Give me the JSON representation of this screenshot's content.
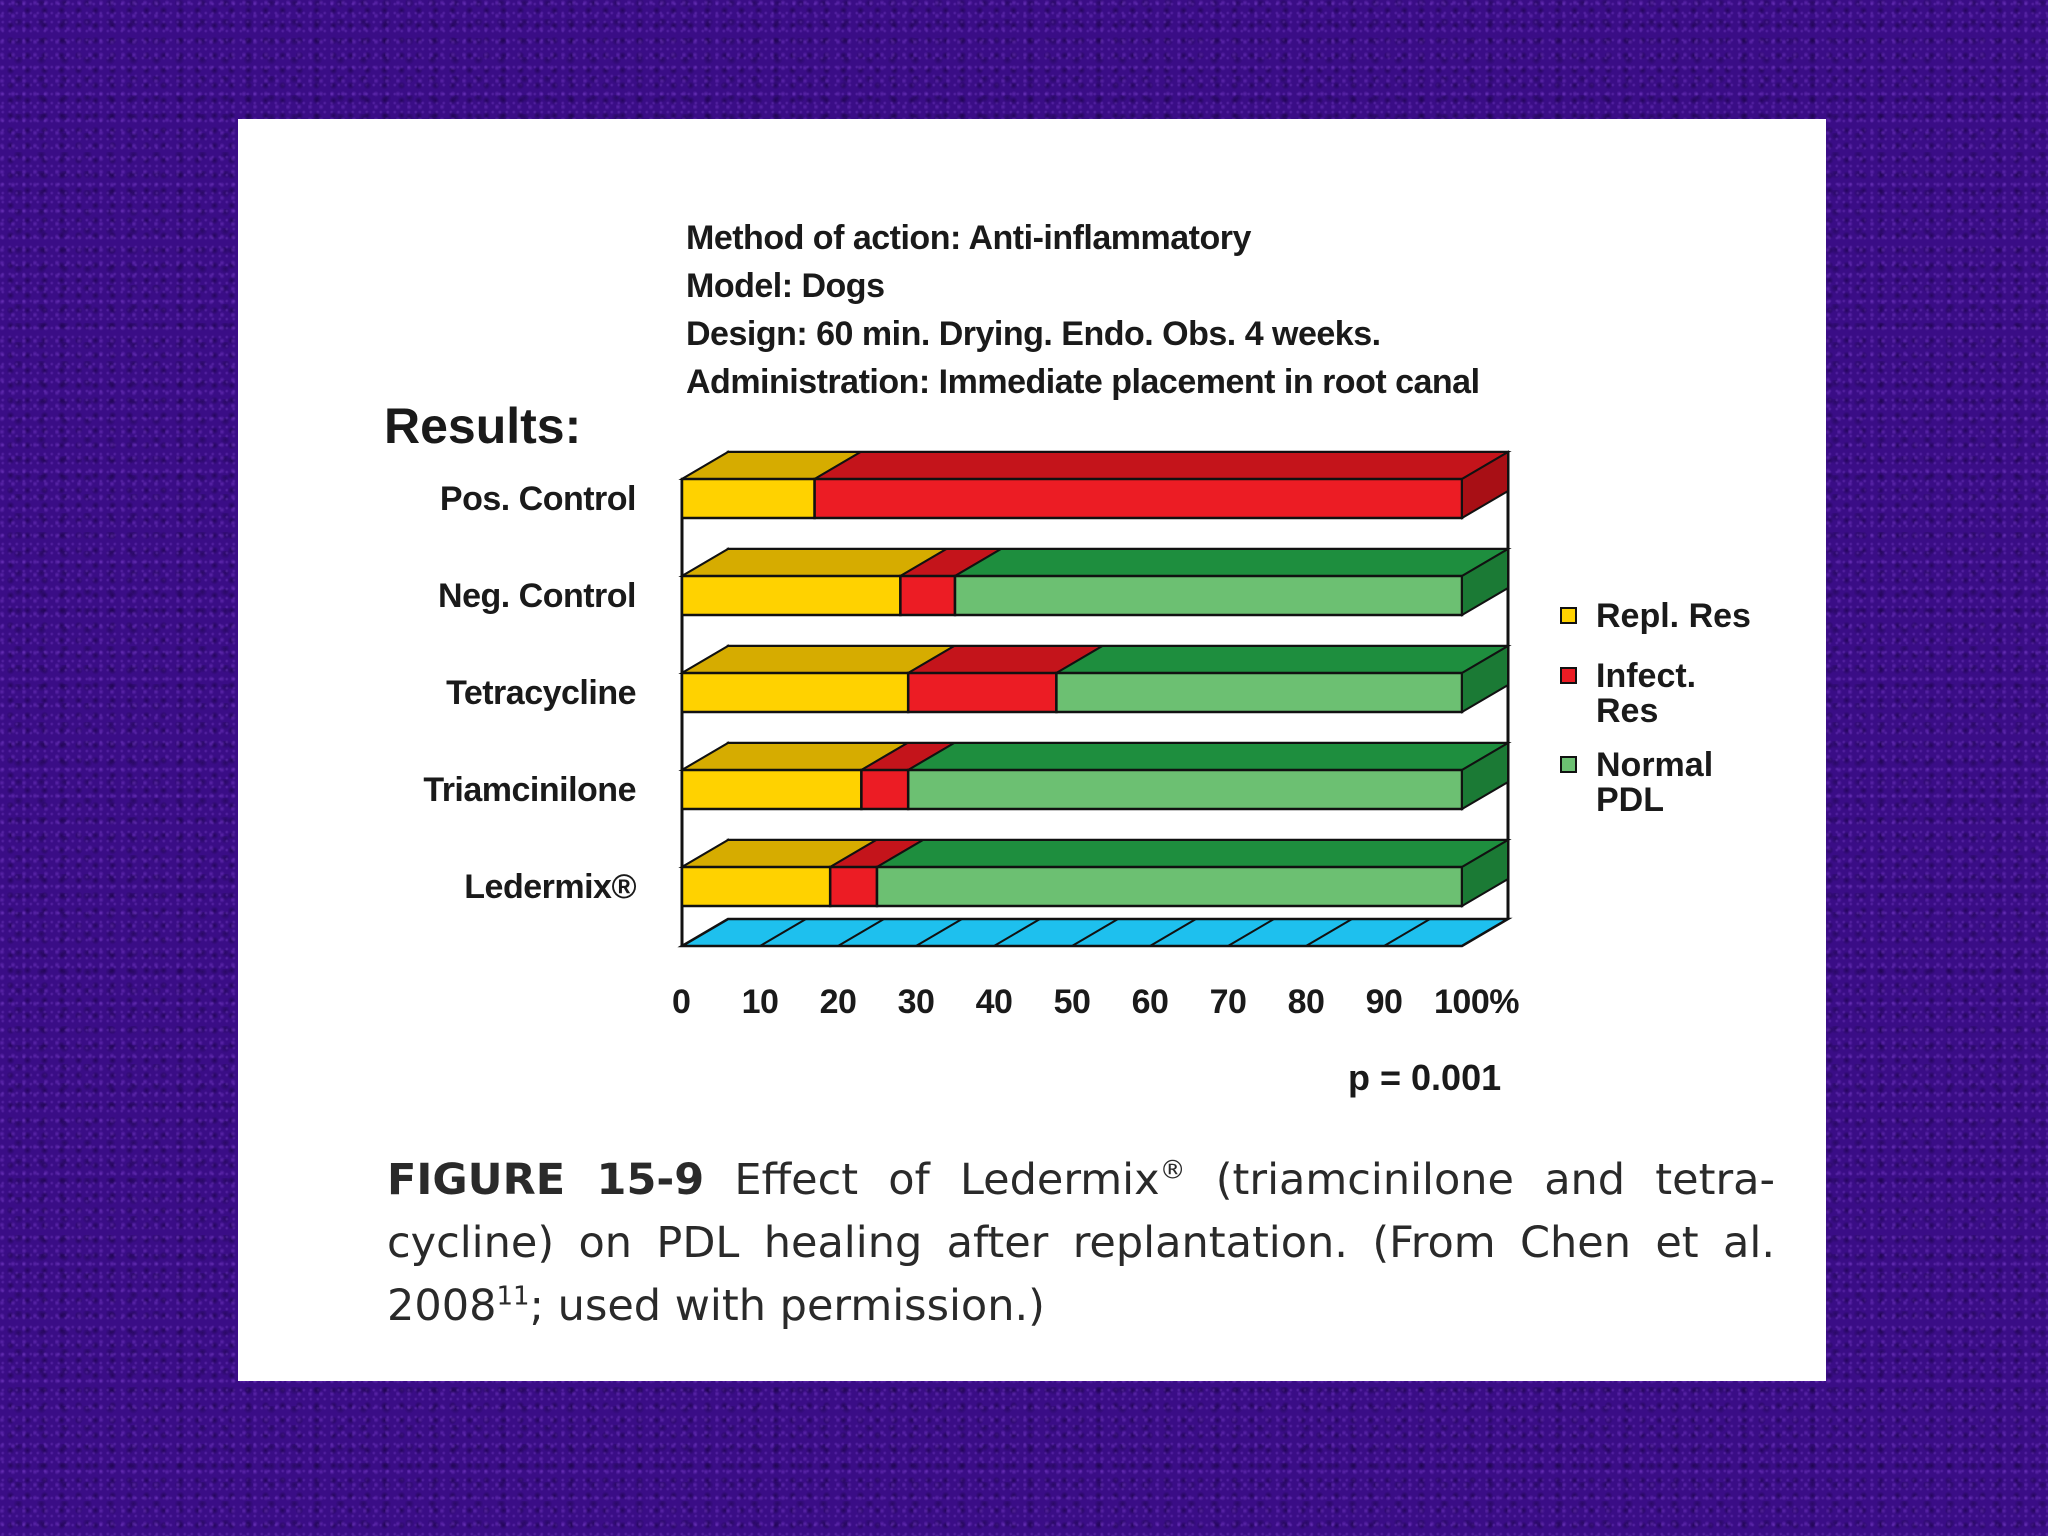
{
  "meta": {
    "method": "Method of action: Anti-inflammatory",
    "model": "Model: Dogs",
    "design": "Design: 60 min. Drying. Endo. Obs. 4 weeks.",
    "administration": "Administration: Immediate placement in root canal"
  },
  "results_label": "Results:",
  "p_value": "p = 0.001",
  "legend": [
    {
      "label": "Repl. Res",
      "color": "#ffd200"
    },
    {
      "label": "Infect. Res",
      "color": "#ec1c24"
    },
    {
      "label": "Normal PDL",
      "color": "#6cc072"
    }
  ],
  "caption": {
    "fig_num": "FIGURE 15-9",
    "part1": " Effect of Ledermix",
    "reg": "®",
    "part2": " (triamcinilone and tetra-cycline) on PDL healing after replantation. (From Chen et al. 2008",
    "ref": "11",
    "part3": "; used with permission.)"
  },
  "colors": {
    "repl_front": "#ffd200",
    "repl_top": "#d6ac00",
    "infect_front": "#ec1c24",
    "infect_top": "#c4141b",
    "infect_side": "#a80f15",
    "normal_front": "#6cc072",
    "normal_top": "#1e8e3e",
    "normal_side": "#1b7a35",
    "grid_cell": "#c9eaf7",
    "wall_side": "#1ec0ee",
    "floor": "#1ec0ee",
    "background": "#3a0d86",
    "panel": "#ffffff"
  },
  "chart_data": {
    "type": "bar",
    "orientation": "horizontal",
    "stacked": true,
    "title": "Results:",
    "xlabel": "",
    "ylabel": "",
    "xlim": [
      0,
      100
    ],
    "x_ticks": [
      "0",
      "10",
      "20",
      "30",
      "40",
      "50",
      "60",
      "70",
      "80",
      "90",
      "100%"
    ],
    "categories": [
      "Pos. Control",
      "Neg. Control",
      "Tetracycline",
      "Triamcinilone",
      "Ledermix®"
    ],
    "series": [
      {
        "name": "Repl. Res",
        "values": [
          17,
          28,
          29,
          23,
          19
        ]
      },
      {
        "name": "Infect. Res",
        "values": [
          83,
          7,
          19,
          6,
          6
        ]
      },
      {
        "name": "Normal PDL",
        "values": [
          0,
          65,
          52,
          71,
          75
        ]
      }
    ],
    "legend_position": "right",
    "annotation": "p = 0.001"
  }
}
